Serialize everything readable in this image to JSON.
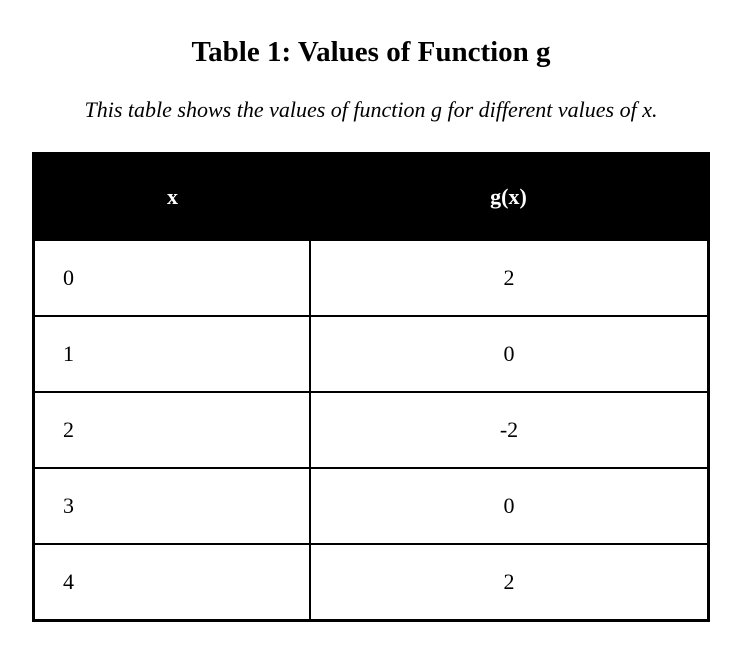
{
  "title": "Table 1: Values of Function g",
  "subtitle": "This table shows the values of function g for different values of x.",
  "table": {
    "headers": [
      "x",
      "g(x)"
    ],
    "rows": [
      [
        "0",
        "2"
      ],
      [
        "1",
        "0"
      ],
      [
        "2",
        "-2"
      ],
      [
        "3",
        "0"
      ],
      [
        "4",
        "2"
      ]
    ]
  }
}
